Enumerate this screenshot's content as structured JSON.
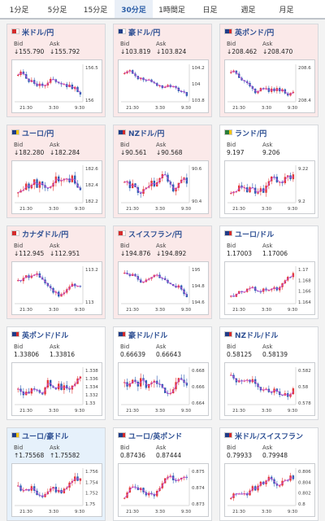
{
  "tabs": [
    "1分足",
    "5分足",
    "15分足",
    "30分足",
    "1時間足",
    "日足",
    "週足",
    "月足"
  ],
  "active_tab": 3,
  "bid_label": "Bid",
  "ask_label": "Ask",
  "x_ticks": [
    "21:30",
    "3:30",
    "9:30"
  ],
  "cards": [
    {
      "pair": "米ドル/円",
      "bid": "↓155.790",
      "ask": "↓155.792",
      "state": "down",
      "flag": [
        "#d42b2b",
        "#ffffff"
      ],
      "yticks": [
        "156.5",
        "156"
      ]
    },
    {
      "pair": "豪ドル/円",
      "bid": "↓103.819",
      "ask": "↓103.824",
      "state": "down",
      "flag": [
        "#1f3c88",
        "#ffffff"
      ],
      "yticks": [
        "104.2",
        "104",
        "103.8"
      ]
    },
    {
      "pair": "英ポンド/円",
      "bid": "↓208.462",
      "ask": "↓208.470",
      "state": "down",
      "flag": [
        "#1f3c88",
        "#d42b2b"
      ],
      "yticks": [
        "208.6",
        "208.4"
      ]
    },
    {
      "pair": "ユーロ/円",
      "bid": "↓182.280",
      "ask": "↓182.284",
      "state": "down",
      "flag": [
        "#1f3c88",
        "#f5c400"
      ],
      "yticks": [
        "182.6",
        "182.4",
        "182.2"
      ]
    },
    {
      "pair": "NZドル/円",
      "bid": "↓90.561",
      "ask": "↓90.568",
      "state": "down",
      "flag": [
        "#1f3c88",
        "#d42b2b"
      ],
      "yticks": [
        "90.6",
        "90.4"
      ]
    },
    {
      "pair": "ランド/円",
      "bid": "9.197",
      "ask": "9.206",
      "state": "none",
      "flag": [
        "#2a7d3a",
        "#f5c400"
      ],
      "yticks": [
        "9.22",
        "9.2"
      ]
    },
    {
      "pair": "カナダドル/円",
      "bid": "↓112.945",
      "ask": "↓112.951",
      "state": "down",
      "flag": [
        "#d42b2b",
        "#ffffff"
      ],
      "yticks": [
        "113.2",
        "113"
      ]
    },
    {
      "pair": "スイスフラン/円",
      "bid": "↓194.876",
      "ask": "↓194.892",
      "state": "down",
      "flag": [
        "#d42b2b",
        "#ffffff"
      ],
      "yticks": [
        "195",
        "194.8",
        "194.6"
      ]
    },
    {
      "pair": "ユーロ/ドル",
      "bid": "1.17003",
      "ask": "1.17006",
      "state": "none",
      "flag": [
        "#1f3c88",
        "#d42b2b"
      ],
      "yticks": [
        "1.17",
        "1.168",
        "1.166",
        "1.164"
      ]
    },
    {
      "pair": "英ポンド/ドル",
      "bid": "1.33806",
      "ask": "1.33816",
      "state": "none",
      "flag": [
        "#1f3c88",
        "#d42b2b"
      ],
      "yticks": [
        "1.338",
        "1.336",
        "1.334",
        "1.332",
        "1.33"
      ]
    },
    {
      "pair": "豪ドル/ドル",
      "bid": "0.66639",
      "ask": "0.66643",
      "state": "none",
      "flag": [
        "#1f3c88",
        "#d42b2b"
      ],
      "yticks": [
        "0.668",
        "0.666",
        "0.664"
      ]
    },
    {
      "pair": "NZドル/ドル",
      "bid": "0.58125",
      "ask": "0.58139",
      "state": "none",
      "flag": [
        "#1f3c88",
        "#d42b2b"
      ],
      "yticks": [
        "0.582",
        "0.58",
        "0.578"
      ]
    },
    {
      "pair": "ユーロ/豪ドル",
      "bid": "↑1.75568",
      "ask": "↑1.75582",
      "state": "up",
      "flag": [
        "#1f3c88",
        "#f5c400"
      ],
      "yticks": [
        "1.756",
        "1.754",
        "1.752",
        "1.75"
      ]
    },
    {
      "pair": "ユーロ/英ポンド",
      "bid": "0.87436",
      "ask": "0.87444",
      "state": "none",
      "flag": [
        "#1f3c88",
        "#d42b2b"
      ],
      "yticks": [
        "0.875",
        "0.874",
        "0.873"
      ]
    },
    {
      "pair": "米ドル/スイスフラン",
      "bid": "0.79933",
      "ask": "0.79948",
      "state": "none",
      "flag": [
        "#1f3c88",
        "#d42b2b"
      ],
      "yticks": [
        "0.806",
        "0.804",
        "0.802",
        "0.8"
      ]
    }
  ]
}
